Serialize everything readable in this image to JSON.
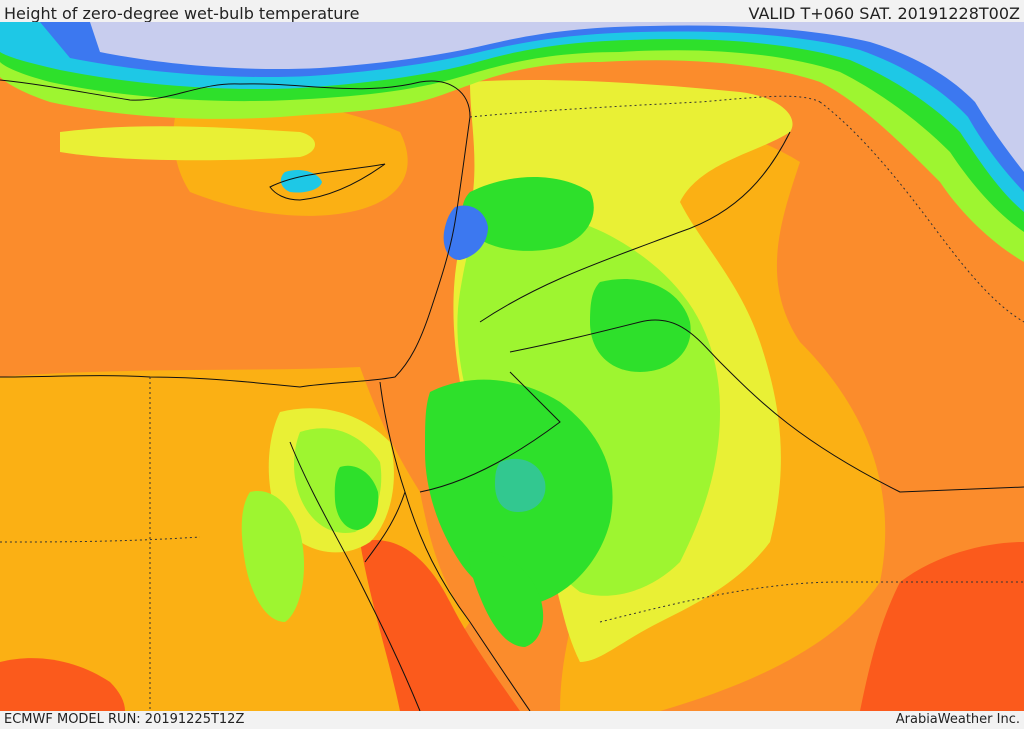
{
  "header": {
    "title": "Height of zero-degree wet-bulb temperature",
    "valid": "VALID T+060 SAT. 20191228T00Z"
  },
  "footer": {
    "model_run": "ECMWF MODEL RUN: 20191225T12Z",
    "credit": "ArabiaWeather Inc."
  },
  "map": {
    "colors": {
      "deep_orange": "#fb5a1c",
      "orange": "#fb8c2c",
      "light_orange": "#fbb014",
      "yellow": "#e9f035",
      "light_green": "#9ef530",
      "green": "#2ee02b",
      "teal": "#32c890",
      "cyan": "#1ec8e6",
      "blue": "#3c78f0",
      "lavender": "#c8cdee",
      "border_line": "#111111"
    }
  }
}
